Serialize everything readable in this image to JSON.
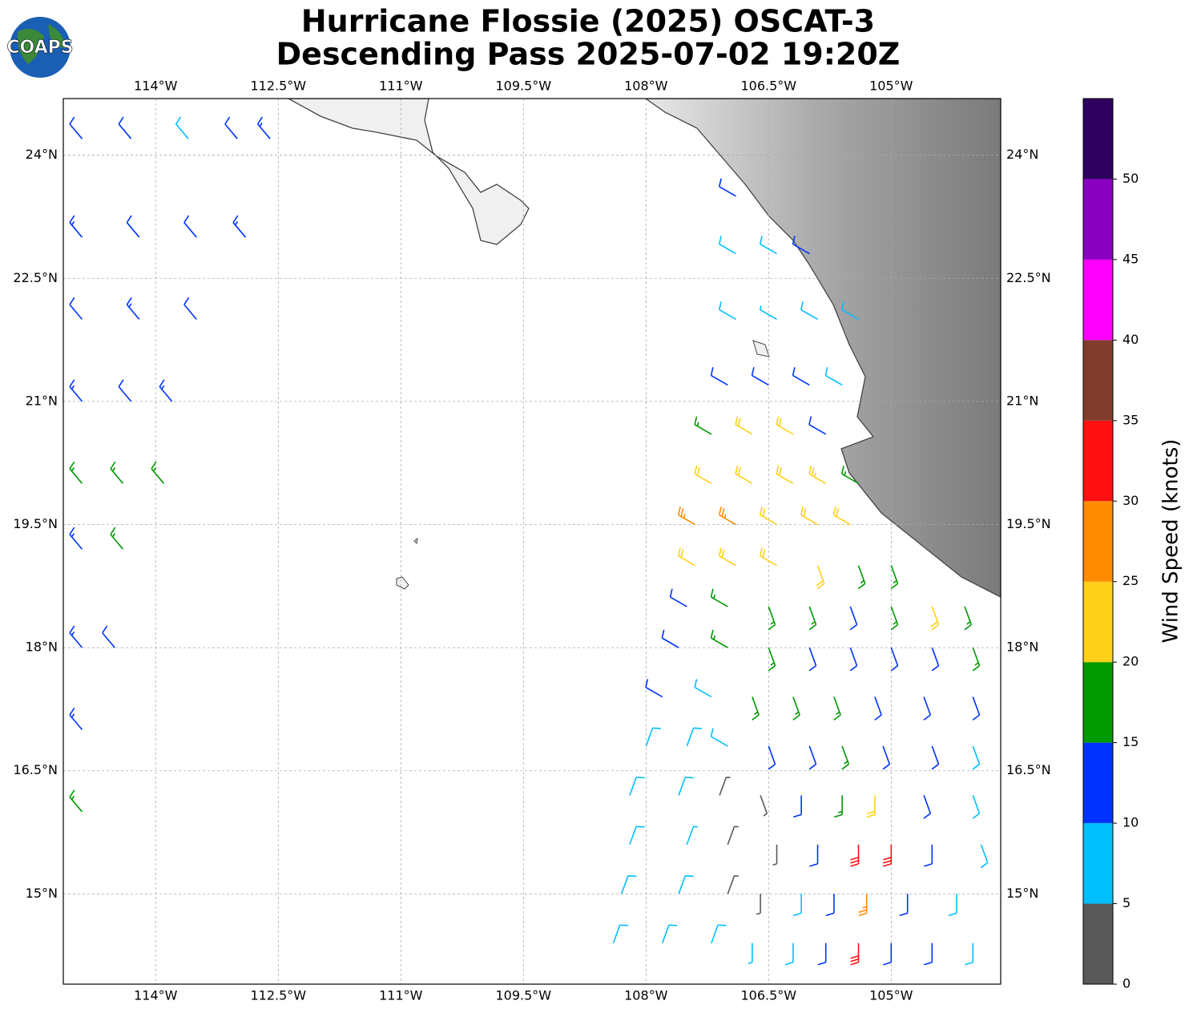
{
  "chart_data": {
    "type": "barbs",
    "logo": "COAPS",
    "title": "Hurricane Flossie (2025) OSCAT-3",
    "subtitle": "Descending Pass 2025-07-02 19:20Z",
    "xlim": [
      -115.13,
      -103.66
    ],
    "ylim": [
      13.9,
      24.69
    ],
    "xticks": [
      {
        "value": -114,
        "label": "114°W"
      },
      {
        "value": -112.5,
        "label": "112.5°W"
      },
      {
        "value": -111,
        "label": "111°W"
      },
      {
        "value": -109.5,
        "label": "109.5°W"
      },
      {
        "value": -108,
        "label": "108°W"
      },
      {
        "value": -106.5,
        "label": "106.5°W"
      },
      {
        "value": -105,
        "label": "105°W"
      }
    ],
    "yticks": [
      {
        "value": 15,
        "label": "15°N"
      },
      {
        "value": 16.5,
        "label": "16.5°N"
      },
      {
        "value": 18,
        "label": "18°N"
      },
      {
        "value": 19.5,
        "label": "19.5°N"
      },
      {
        "value": 21,
        "label": "21°N"
      },
      {
        "value": 22.5,
        "label": "22.5°N"
      },
      {
        "value": 24,
        "label": "24°N"
      }
    ],
    "grid": true,
    "colorbar": {
      "label": "Wind Speed (knots)",
      "lim": [
        0,
        55
      ],
      "ticks": [
        0,
        5,
        10,
        15,
        20,
        25,
        30,
        35,
        40,
        45,
        50
      ],
      "bounds": [
        0,
        5,
        10,
        15,
        20,
        25,
        30,
        35,
        40,
        45,
        50,
        55
      ],
      "colors": [
        "#595959",
        "#00bfff",
        "#0033ff",
        "#009900",
        "#ffd11a",
        "#ff8c00",
        "#ff1010",
        "#803d2b",
        "#ff00ff",
        "#8a00c2",
        "#2e0060"
      ]
    },
    "barbs": [
      [
        -114.9,
        24.2,
        12,
        320
      ],
      [
        -114.3,
        24.2,
        11,
        320
      ],
      [
        -113.6,
        24.2,
        8,
        320
      ],
      [
        -113.0,
        24.2,
        12,
        320
      ],
      [
        -112.6,
        24.2,
        13,
        320
      ],
      [
        -114.9,
        23.0,
        13,
        320
      ],
      [
        -114.2,
        23.0,
        12,
        320
      ],
      [
        -113.5,
        23.0,
        12,
        320
      ],
      [
        -112.9,
        23.0,
        13,
        320
      ],
      [
        -114.9,
        22.0,
        12,
        320
      ],
      [
        -114.2,
        22.0,
        13,
        320
      ],
      [
        -113.5,
        22.0,
        12,
        320
      ],
      [
        -114.9,
        21.0,
        13,
        320
      ],
      [
        -114.3,
        21.0,
        12,
        320
      ],
      [
        -113.8,
        21.0,
        14,
        320
      ],
      [
        -114.9,
        20.0,
        17,
        320
      ],
      [
        -114.4,
        20.0,
        17,
        320
      ],
      [
        -113.9,
        20.0,
        16,
        320
      ],
      [
        -114.9,
        19.2,
        14,
        320
      ],
      [
        -114.4,
        19.2,
        17,
        320
      ],
      [
        -114.9,
        18.0,
        13,
        320
      ],
      [
        -114.5,
        18.0,
        12,
        320
      ],
      [
        -114.9,
        17.0,
        13,
        320
      ],
      [
        -114.9,
        16.0,
        17,
        320
      ],
      [
        -106.9,
        23.5,
        12,
        300
      ],
      [
        -106.9,
        22.8,
        8,
        300
      ],
      [
        -106.4,
        22.8,
        8,
        300
      ],
      [
        -106.0,
        22.8,
        12,
        300
      ],
      [
        -106.9,
        22.0,
        8,
        300
      ],
      [
        -106.4,
        22.0,
        5,
        300
      ],
      [
        -105.9,
        22.0,
        8,
        300
      ],
      [
        -105.4,
        22.0,
        8,
        300
      ],
      [
        -107.0,
        21.2,
        12,
        300
      ],
      [
        -106.5,
        21.2,
        12,
        300
      ],
      [
        -106.0,
        21.2,
        10,
        300
      ],
      [
        -105.6,
        21.2,
        8,
        300
      ],
      [
        -107.2,
        20.6,
        17,
        300
      ],
      [
        -106.7,
        20.6,
        22,
        300
      ],
      [
        -106.2,
        20.6,
        22,
        300
      ],
      [
        -105.8,
        20.6,
        12,
        300
      ],
      [
        -107.2,
        20.0,
        22,
        300
      ],
      [
        -106.7,
        20.0,
        22,
        300
      ],
      [
        -106.2,
        20.0,
        22,
        300
      ],
      [
        -105.8,
        20.0,
        24,
        300
      ],
      [
        -105.4,
        20.0,
        17,
        300
      ],
      [
        -107.4,
        19.5,
        27,
        300
      ],
      [
        -106.9,
        19.5,
        27,
        300
      ],
      [
        -106.4,
        19.5,
        22,
        300
      ],
      [
        -105.9,
        19.5,
        22,
        300
      ],
      [
        -105.5,
        19.5,
        22,
        300
      ],
      [
        -107.4,
        19.0,
        22,
        300
      ],
      [
        -106.9,
        19.0,
        22,
        300
      ],
      [
        -106.4,
        19.0,
        22,
        300
      ],
      [
        -105.9,
        19.0,
        22,
        160
      ],
      [
        -105.4,
        19.0,
        17,
        160
      ],
      [
        -105.0,
        19.0,
        17,
        160
      ],
      [
        -107.5,
        18.5,
        12,
        300
      ],
      [
        -107.0,
        18.5,
        17,
        300
      ],
      [
        -106.5,
        18.5,
        17,
        160
      ],
      [
        -106.0,
        18.5,
        17,
        160
      ],
      [
        -105.5,
        18.5,
        12,
        160
      ],
      [
        -105.0,
        18.5,
        17,
        160
      ],
      [
        -104.5,
        18.5,
        22,
        160
      ],
      [
        -104.1,
        18.5,
        17,
        160
      ],
      [
        -107.6,
        18.0,
        12,
        300
      ],
      [
        -107.0,
        18.0,
        17,
        300
      ],
      [
        -106.5,
        18.0,
        17,
        160
      ],
      [
        -106.0,
        18.0,
        12,
        160
      ],
      [
        -105.5,
        18.0,
        12,
        160
      ],
      [
        -105.0,
        18.0,
        12,
        160
      ],
      [
        -104.5,
        18.0,
        12,
        160
      ],
      [
        -104.0,
        18.0,
        17,
        160
      ],
      [
        -107.8,
        17.4,
        12,
        300
      ],
      [
        -107.2,
        17.4,
        8,
        300
      ],
      [
        -106.7,
        17.4,
        17,
        160
      ],
      [
        -106.2,
        17.4,
        17,
        160
      ],
      [
        -105.7,
        17.4,
        17,
        160
      ],
      [
        -105.2,
        17.4,
        12,
        160
      ],
      [
        -104.6,
        17.4,
        12,
        160
      ],
      [
        -104.0,
        17.4,
        12,
        160
      ],
      [
        -108.0,
        16.8,
        8,
        20
      ],
      [
        -107.5,
        16.8,
        8,
        20
      ],
      [
        -107.0,
        16.8,
        8,
        300
      ],
      [
        -106.5,
        16.8,
        12,
        160
      ],
      [
        -106.0,
        16.8,
        12,
        160
      ],
      [
        -105.6,
        16.8,
        17,
        160
      ],
      [
        -105.1,
        16.8,
        12,
        160
      ],
      [
        -104.5,
        16.8,
        12,
        160
      ],
      [
        -104.0,
        16.8,
        8,
        160
      ],
      [
        -108.2,
        16.2,
        8,
        20
      ],
      [
        -107.6,
        16.2,
        8,
        20
      ],
      [
        -107.1,
        16.2,
        3,
        20
      ],
      [
        -106.6,
        16.2,
        3,
        160
      ],
      [
        -106.1,
        16.2,
        12,
        180
      ],
      [
        -105.6,
        16.2,
        17,
        180
      ],
      [
        -105.2,
        16.2,
        22,
        180
      ],
      [
        -104.6,
        16.2,
        12,
        160
      ],
      [
        -104.0,
        16.2,
        8,
        160
      ],
      [
        -108.2,
        15.6,
        8,
        20
      ],
      [
        -107.5,
        15.6,
        5,
        20
      ],
      [
        -107.0,
        15.6,
        3,
        20
      ],
      [
        -106.4,
        15.6,
        3,
        180
      ],
      [
        -105.9,
        15.6,
        12,
        180
      ],
      [
        -105.4,
        15.6,
        32,
        180
      ],
      [
        -105.0,
        15.6,
        32,
        180
      ],
      [
        -104.5,
        15.6,
        12,
        180
      ],
      [
        -103.9,
        15.6,
        8,
        160
      ],
      [
        -108.3,
        15.0,
        8,
        20
      ],
      [
        -107.6,
        15.0,
        8,
        20
      ],
      [
        -107.0,
        15.0,
        3,
        20
      ],
      [
        -106.6,
        15.0,
        3,
        180
      ],
      [
        -106.1,
        15.0,
        8,
        180
      ],
      [
        -105.7,
        15.0,
        12,
        180
      ],
      [
        -105.3,
        15.0,
        27,
        180
      ],
      [
        -104.8,
        15.0,
        12,
        180
      ],
      [
        -104.2,
        15.0,
        8,
        180
      ],
      [
        -108.4,
        14.4,
        8,
        20
      ],
      [
        -107.8,
        14.4,
        8,
        20
      ],
      [
        -107.2,
        14.4,
        8,
        20
      ],
      [
        -106.7,
        14.4,
        5,
        180
      ],
      [
        -106.2,
        14.4,
        8,
        180
      ],
      [
        -105.8,
        14.4,
        12,
        180
      ],
      [
        -105.4,
        14.4,
        32,
        180
      ],
      [
        -105.0,
        14.4,
        12,
        180
      ],
      [
        -104.5,
        14.4,
        12,
        180
      ],
      [
        -104.0,
        14.4,
        8,
        180
      ]
    ]
  }
}
